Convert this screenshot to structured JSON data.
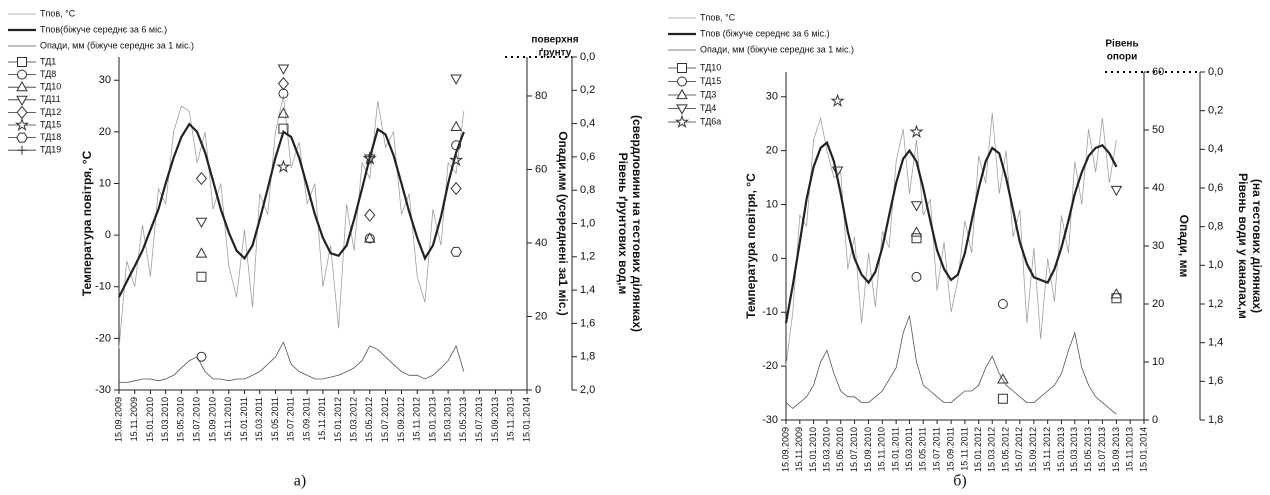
{
  "chart_data": [
    {
      "type": "line",
      "panel": "а)",
      "legend": "upper left",
      "ylabel": "Температура повітря, °C",
      "y2label": "Опади,мм (усереднені за1 міс.)",
      "y3label": [
        "Рівень ґрунтових вод,м",
        "(свердловини на тестових ділянках)"
      ],
      "annotation": [
        "поверхня",
        "ґрунту"
      ],
      "xlim": [
        "15.09.2009",
        "15.01.2014"
      ],
      "xticks": [
        "15.09.2009",
        "15.11.2009",
        "15.01.2010",
        "15.03.2010",
        "15.05.2010",
        "15.07.2010",
        "15.09.2010",
        "15.11.2010",
        "15.01.2011",
        "15.03.2011",
        "15.05.2011",
        "15.07.2011",
        "15.09.2011",
        "15.11.2011",
        "15.01.2012",
        "15.03.2012",
        "15.05.2012",
        "15.07.2012",
        "15.09.2012",
        "15.11.2012",
        "15.01.2013",
        "15.03.2013",
        "15.05.2013",
        "15.07.2013",
        "15.09.2013",
        "15.11.2013",
        "15.01.2014"
      ],
      "ylim": [
        -30,
        34.5
      ],
      "yticks": [
        -30,
        -20,
        -10,
        0,
        10,
        20,
        30
      ],
      "y2lim": [
        0,
        90.6
      ],
      "y2ticks": [
        0,
        20,
        40,
        60,
        80
      ],
      "y3lim": [
        2,
        0
      ],
      "y3ticks": [
        {
          "value": 0,
          "label": "0,0"
        },
        {
          "value": 0.2,
          "label": "0,2"
        },
        {
          "value": 0.4,
          "label": "0,4"
        },
        {
          "value": 0.6,
          "label": "0,6"
        },
        {
          "value": 0.8,
          "label": "0,8"
        },
        {
          "value": 1,
          "label": "1,0"
        },
        {
          "value": 1.2,
          "label": "1,2"
        },
        {
          "value": 1.4,
          "label": "1,4"
        },
        {
          "value": 1.6,
          "label": "1,6"
        },
        {
          "value": 1.8,
          "label": "1,8"
        },
        {
          "value": 2,
          "label": "2,0"
        }
      ],
      "x": [
        "15.09.2009",
        "15.10.2009",
        "15.11.2009",
        "15.12.2009",
        "15.01.2010",
        "15.02.2010",
        "15.03.2010",
        "15.04.2010",
        "15.05.2010",
        "15.06.2010",
        "15.07.2010",
        "15.08.2010",
        "15.09.2010",
        "15.10.2010",
        "15.11.2010",
        "15.12.2010",
        "15.01.2011",
        "15.02.2011",
        "15.03.2011",
        "15.04.2011",
        "15.05.2011",
        "15.06.2011",
        "15.07.2011",
        "15.08.2011",
        "15.09.2011",
        "15.10.2011",
        "15.11.2011",
        "15.12.2011",
        "15.01.2012",
        "15.02.2012",
        "15.03.2012",
        "15.04.2012",
        "15.05.2012",
        "15.06.2012",
        "15.07.2012",
        "15.08.2012",
        "15.09.2012",
        "15.10.2012",
        "15.11.2012",
        "15.12.2012",
        "15.01.2013",
        "15.02.2013",
        "15.03.2013",
        "15.04.2013",
        "15.05.2013"
      ],
      "series": [
        {
          "name": "Tпов, °C",
          "color": "#a0a0a0",
          "values": [
            -22,
            -5,
            -10,
            2,
            -8,
            9,
            6,
            20,
            25,
            24,
            14,
            20,
            5,
            10,
            -6,
            -12,
            1,
            -14,
            8,
            4,
            20,
            27,
            13,
            18,
            6,
            10,
            -10,
            -2,
            -18,
            6,
            -3,
            14,
            11,
            26,
            17,
            20,
            4,
            8,
            -8,
            -13,
            5,
            -2,
            14,
            12,
            24
          ]
        },
        {
          "name": "Tпов(біжуче середнє за 6 міс.)",
          "color": "#222222",
          "values": [
            -12,
            -9,
            -6,
            -3,
            1,
            5,
            10,
            15,
            19,
            21.5,
            20,
            16,
            10.5,
            5,
            0.5,
            -3,
            -4.5,
            -2,
            3,
            9,
            15,
            20,
            19,
            15,
            9.5,
            4,
            -0.5,
            -3.5,
            -4,
            -2,
            3,
            9,
            15,
            20.5,
            19.5,
            15.5,
            10,
            4.5,
            -0.5,
            -4.5,
            -2,
            3.5,
            10,
            16,
            20
          ]
        },
        {
          "name": "Опади, мм (біжуче середнє за 1 міс.)",
          "color": "#555555",
          "axis": "y2",
          "values": [
            2,
            2,
            2.5,
            3,
            3,
            2.5,
            3,
            4,
            6,
            8,
            9,
            5,
            3,
            3,
            2.5,
            3,
            3,
            4,
            5,
            7,
            9,
            13,
            7,
            5,
            4,
            3,
            3,
            3.5,
            4,
            5,
            6,
            8,
            12,
            11,
            9,
            7,
            5,
            4,
            4,
            3,
            4,
            6,
            8,
            12,
            5
          ]
        },
        {
          "name": "ТД1",
          "marker": "square",
          "color": "#333333",
          "axis": "y3",
          "x": [
            "01.08.2010",
            "15.06.2011"
          ],
          "values": [
            1.32,
            0.43
          ]
        },
        {
          "name": "ТД8",
          "marker": "circle",
          "color": "#333333",
          "axis": "y3",
          "x": [
            "01.08.2010",
            "15.06.2011",
            "15.05.2012",
            "15.04.2013"
          ],
          "values": [
            1.8,
            0.22,
            1.09,
            0.53
          ]
        },
        {
          "name": "ТД10",
          "marker": "triangle",
          "color": "#333333",
          "axis": "y3",
          "x": [
            "01.08.2010",
            "15.06.2011",
            "15.05.2012",
            "15.04.2013"
          ],
          "values": [
            1.18,
            0.34,
            1.09,
            0.42
          ]
        },
        {
          "name": "ТД11",
          "marker": "triangle-down",
          "color": "#333333",
          "axis": "y3",
          "x": [
            "01.08.2010",
            "15.06.2011",
            "15.05.2012",
            "15.04.2013"
          ],
          "values": [
            0.99,
            0.07,
            0.61,
            0.13
          ]
        },
        {
          "name": "ТД12",
          "marker": "diamond",
          "color": "#333333",
          "axis": "y3",
          "x": [
            "01.08.2010",
            "15.06.2011",
            "15.05.2012",
            "15.04.2013"
          ],
          "values": [
            0.73,
            0.16,
            0.95,
            0.79
          ]
        },
        {
          "name": "ТД15",
          "marker": "star",
          "color": "#333333",
          "axis": "y3",
          "x": [
            "15.06.2011",
            "15.05.2012",
            "15.04.2013"
          ],
          "values": [
            0.66,
            0.61,
            0.62
          ]
        },
        {
          "name": "ТД18",
          "marker": "hexagon",
          "color": "#333333",
          "axis": "y3",
          "x": [
            "15.04.2013"
          ],
          "values": [
            1.17
          ]
        },
        {
          "name": "ТД19",
          "marker": "plus",
          "color": "#333333",
          "axis": "y3",
          "x": [],
          "values": []
        }
      ]
    },
    {
      "type": "line",
      "panel": "б)",
      "legend": "upper left",
      "ylabel": "Температура повітря, °C",
      "y2label": "Опади, мм",
      "y3label": [
        "Рівень води у каналах,м",
        "(на тестових ділянках)"
      ],
      "annotation": [
        "Рівень",
        "опори"
      ],
      "xlim": [
        "15.09.2009",
        "15.01.2014"
      ],
      "xticks": [
        "15.09.2009",
        "15.11.2009",
        "15.01.2010",
        "15.03.2010",
        "15.05.2010",
        "15.07.2010",
        "15.09.2010",
        "15.11.2010",
        "15.01.2011",
        "15.03.2011",
        "15.05.2011",
        "15.07.2011",
        "15.09.2011",
        "15.11.2011",
        "15.01.2012",
        "15.03.2012",
        "15.05.2012",
        "15.07.2012",
        "15.09.2012",
        "15.11.2012",
        "15.01.2013",
        "15.03.2013",
        "15.05.2013",
        "15.07.2013",
        "15.09.2013",
        "15.11.2013",
        "15.01.2014"
      ],
      "ylim": [
        -30,
        34.6
      ],
      "yticks": [
        -30,
        -20,
        -10,
        0,
        10,
        20,
        30
      ],
      "y2lim": [
        0,
        60
      ],
      "y2ticks": [
        0,
        10,
        20,
        30,
        40,
        50,
        60
      ],
      "y3lim": [
        1.8,
        0
      ],
      "y3ticks": [
        {
          "value": 0,
          "label": "0,0"
        },
        {
          "value": 0.2,
          "label": "0,2"
        },
        {
          "value": 0.4,
          "label": "0,4"
        },
        {
          "value": 0.6,
          "label": "0,6"
        },
        {
          "value": 0.8,
          "label": "0,8"
        },
        {
          "value": 1,
          "label": "1,0"
        },
        {
          "value": 1.2,
          "label": "1,2"
        },
        {
          "value": 1.4,
          "label": "1,4"
        },
        {
          "value": 1.6,
          "label": "1,6"
        },
        {
          "value": 1.8,
          "label": "1,8"
        }
      ],
      "x": [
        "15.09.2009",
        "15.10.2009",
        "15.11.2009",
        "15.12.2009",
        "15.01.2010",
        "15.02.2010",
        "15.03.2010",
        "15.04.2010",
        "15.05.2010",
        "15.06.2010",
        "15.07.2010",
        "15.08.2010",
        "15.09.2010",
        "15.10.2010",
        "15.11.2010",
        "15.12.2010",
        "15.01.2011",
        "15.02.2011",
        "15.03.2011",
        "15.04.2011",
        "15.05.2011",
        "15.06.2011",
        "15.07.2011",
        "15.08.2011",
        "15.09.2011",
        "15.10.2011",
        "15.11.2011",
        "15.12.2011",
        "15.01.2012",
        "15.02.2012",
        "15.03.2012",
        "15.04.2012",
        "15.05.2012",
        "15.06.2012",
        "15.07.2012",
        "15.08.2012",
        "15.09.2012",
        "15.10.2012",
        "15.11.2012",
        "15.12.2012",
        "15.01.2013",
        "15.02.2013",
        "15.03.2013",
        "15.04.2013",
        "15.05.2013",
        "15.06.2013",
        "15.07.2013",
        "15.08.2013",
        "15.09.2013"
      ],
      "series": [
        {
          "name": "Tпов, °C",
          "color": "#a0a0a0",
          "values": [
            -20,
            -10,
            8,
            6,
            22,
            26,
            20,
            15,
            16,
            -2,
            4,
            -12,
            1,
            -9,
            5,
            2,
            18,
            24,
            12,
            22,
            8,
            11,
            -6,
            3,
            -10,
            -4,
            7,
            1,
            19,
            14,
            27,
            12,
            20,
            4,
            9,
            -12,
            2,
            -15,
            0,
            -8,
            8,
            1,
            18,
            10,
            24,
            16,
            26,
            14,
            22
          ]
        },
        {
          "name": "Tпов (біжуче середнє за 6 міс.)",
          "color": "#222222",
          "values": [
            -12,
            -5,
            3,
            11,
            17,
            20.5,
            21.5,
            18,
            12,
            5,
            0,
            -3,
            -4.5,
            -2.5,
            2,
            8,
            14,
            18.5,
            20,
            18,
            13,
            7,
            1.5,
            -2,
            -4,
            -3,
            1,
            7,
            13,
            18,
            20.5,
            19.5,
            15,
            9,
            3,
            -1,
            -3.5,
            -4,
            -4.5,
            -2,
            2,
            7,
            12,
            16,
            19,
            20.5,
            21,
            19.5,
            17
          ]
        },
        {
          "name": "Опади, мм (біжуче середнє за 1 міс.)",
          "color": "#555555",
          "axis": "y2",
          "values": [
            3,
            2,
            3,
            4,
            6,
            10,
            12,
            8,
            5,
            4,
            4,
            3,
            3,
            4,
            5,
            7,
            9,
            15,
            18,
            10,
            6,
            5,
            4,
            3,
            3,
            4,
            5,
            5,
            6,
            9,
            11,
            8,
            6,
            5,
            4,
            3,
            3,
            4,
            5,
            6,
            8,
            12,
            15,
            9,
            6,
            4,
            3,
            2,
            1
          ]
        },
        {
          "name": "ТД10",
          "marker": "square",
          "color": "#333333",
          "axis": "y3",
          "x": [
            "15.04.2011",
            "01.05.2012",
            "15.09.2013"
          ],
          "values": [
            0.86,
            1.69,
            1.17
          ]
        },
        {
          "name": "ТД15",
          "marker": "circle",
          "color": "#333333",
          "axis": "y3",
          "x": [
            "15.04.2011",
            "01.05.2012"
          ],
          "values": [
            1.06,
            1.2
          ]
        },
        {
          "name": "ТД3",
          "marker": "triangle",
          "color": "#333333",
          "axis": "y3",
          "x": [
            "15.04.2011",
            "01.05.2012",
            "15.09.2013"
          ],
          "values": [
            0.83,
            1.59,
            1.15
          ]
        },
        {
          "name": "ТД4",
          "marker": "triangle-down",
          "color": "#333333",
          "axis": "y3",
          "x": [
            "01.05.2010",
            "15.04.2011",
            "15.09.2013"
          ],
          "values": [
            0.51,
            0.69,
            0.61
          ]
        },
        {
          "name": "ТД6а",
          "marker": "star",
          "color": "#333333",
          "axis": "y3",
          "x": [
            "01.05.2010",
            "15.04.2011"
          ],
          "values": [
            0.15,
            0.31
          ]
        }
      ]
    }
  ]
}
